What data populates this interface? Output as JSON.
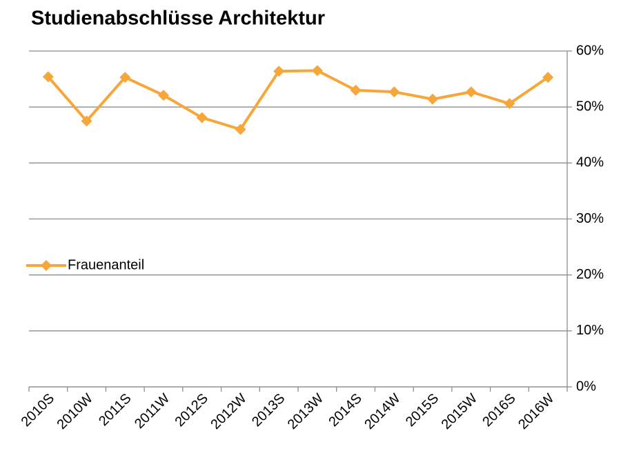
{
  "chart_data": {
    "type": "line",
    "title": "Studienabschlüsse Architektur",
    "categories": [
      "2010S",
      "2010W",
      "2011S",
      "2011W",
      "2012S",
      "2012W",
      "2013S",
      "2013W",
      "2014S",
      "2014W",
      "2015S",
      "2015W",
      "2016S",
      "2016W"
    ],
    "series": [
      {
        "name": "Frauenanteil",
        "color": "#f7a63a",
        "values": [
          55.4,
          47.5,
          55.3,
          52.1,
          48.1,
          46.0,
          56.4,
          56.5,
          53.0,
          52.7,
          51.4,
          52.7,
          50.6,
          55.3
        ]
      }
    ],
    "ylim": [
      0,
      60
    ],
    "yticks": [
      {
        "value": 0,
        "label": "0%"
      },
      {
        "value": 10,
        "label": "10%"
      },
      {
        "value": 20,
        "label": "20%"
      },
      {
        "value": 30,
        "label": "30%"
      },
      {
        "value": 40,
        "label": "40%"
      },
      {
        "value": 50,
        "label": "50%"
      },
      {
        "value": 60,
        "label": "60%"
      }
    ],
    "grid": true,
    "legend": "left"
  }
}
